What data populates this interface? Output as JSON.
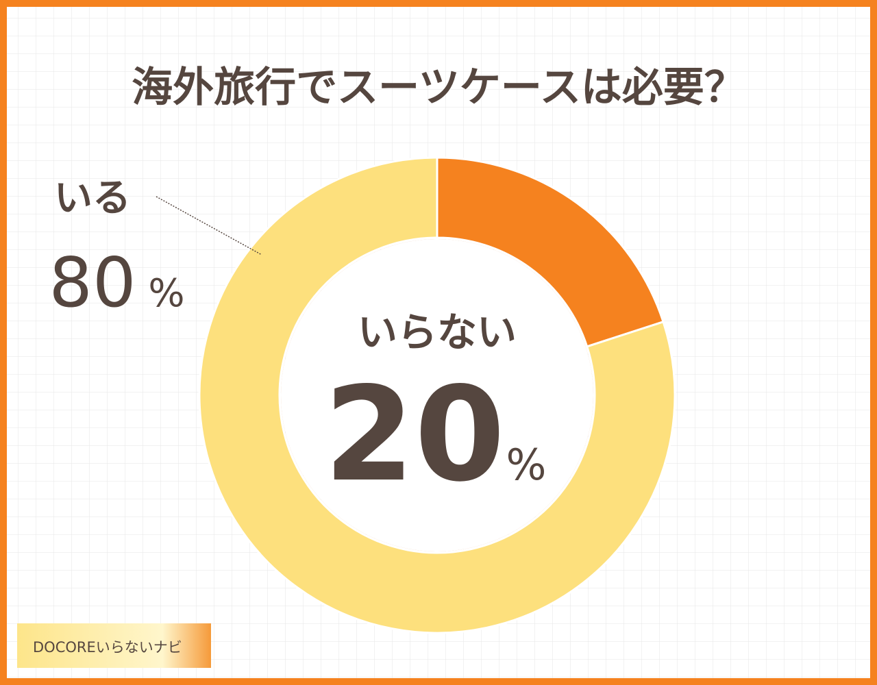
{
  "chart_data": {
    "type": "donut",
    "title": "海外旅行でスーツケースは必要？",
    "categories": [
      "いらない",
      "いる"
    ],
    "values": [
      20,
      80
    ],
    "unit": "%",
    "colors": [
      "#f5821f",
      "#fde07d"
    ]
  },
  "logo": "DOCOREいらないナビ"
}
